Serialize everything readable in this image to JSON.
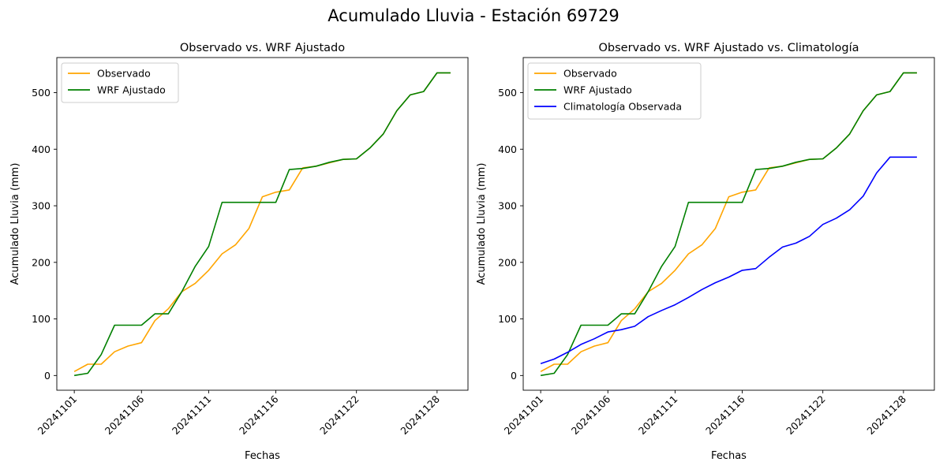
{
  "suptitle": "Acumulado Lluvia - Estación 69729",
  "colors": {
    "observado": "#ffa500",
    "wrf": "#008000",
    "clim": "#0000ff"
  },
  "chart_data": [
    {
      "type": "line",
      "title": "Observado vs. WRF Ajustado",
      "xlabel": "Fechas",
      "ylabel": "Acumulado Lluvia (mm)",
      "x": [
        "20241101",
        "20241102",
        "20241103",
        "20241104",
        "20241105",
        "20241106",
        "20241107",
        "20241108",
        "20241109",
        "20241110",
        "20241111",
        "20241112",
        "20241113",
        "20241114",
        "20241115",
        "20241116",
        "20241117",
        "20241118",
        "20241119",
        "20241120",
        "20241121",
        "20241122",
        "20241123",
        "20241124",
        "20241125",
        "20241126",
        "20241127",
        "20241128",
        "20241129"
      ],
      "xticks": [
        "20241101",
        "20241106",
        "20241111",
        "20241116",
        "20241122",
        "20241128"
      ],
      "ylim": [
        -26,
        562
      ],
      "yticks": [
        0,
        100,
        200,
        300,
        400,
        500
      ],
      "legend_position": "upper-left",
      "grid": false,
      "series": [
        {
          "name": "Observado",
          "color": "#ffa500",
          "values": [
            7,
            20,
            20,
            42,
            52,
            58,
            97,
            118,
            148,
            163,
            186,
            215,
            231,
            260,
            316,
            324,
            328,
            367,
            370,
            376,
            382,
            383,
            402,
            427,
            468,
            496,
            502,
            535,
            535
          ]
        },
        {
          "name": "WRF Ajustado",
          "color": "#008000",
          "values": [
            0,
            4,
            37,
            89,
            89,
            89,
            109,
            109,
            148,
            193,
            228,
            306,
            306,
            306,
            306,
            306,
            364,
            366,
            370,
            377,
            382,
            383,
            402,
            427,
            468,
            496,
            502,
            535,
            535
          ]
        }
      ]
    },
    {
      "type": "line",
      "title": "Observado vs. WRF Ajustado vs. Climatología",
      "xlabel": "Fechas",
      "ylabel": "Acumulado Lluvia (mm)",
      "x": [
        "20241101",
        "20241102",
        "20241103",
        "20241104",
        "20241105",
        "20241106",
        "20241107",
        "20241108",
        "20241109",
        "20241110",
        "20241111",
        "20241112",
        "20241113",
        "20241114",
        "20241115",
        "20241116",
        "20241117",
        "20241118",
        "20241119",
        "20241120",
        "20241121",
        "20241122",
        "20241123",
        "20241124",
        "20241125",
        "20241126",
        "20241127",
        "20241128",
        "20241129"
      ],
      "xticks": [
        "20241101",
        "20241106",
        "20241111",
        "20241116",
        "20241122",
        "20241128"
      ],
      "ylim": [
        -26,
        562
      ],
      "yticks": [
        0,
        100,
        200,
        300,
        400,
        500
      ],
      "legend_position": "upper-left",
      "grid": false,
      "series": [
        {
          "name": "Observado",
          "color": "#ffa500",
          "values": [
            7,
            20,
            20,
            42,
            52,
            58,
            97,
            118,
            148,
            163,
            186,
            215,
            231,
            260,
            316,
            324,
            328,
            367,
            370,
            376,
            382,
            383,
            402,
            427,
            468,
            496,
            502,
            535,
            535
          ]
        },
        {
          "name": "WRF Ajustado",
          "color": "#008000",
          "values": [
            0,
            4,
            37,
            89,
            89,
            89,
            109,
            109,
            148,
            193,
            228,
            306,
            306,
            306,
            306,
            306,
            364,
            366,
            370,
            377,
            382,
            383,
            402,
            427,
            468,
            496,
            502,
            535,
            535
          ]
        },
        {
          "name": "Climatología Observada",
          "color": "#0000ff",
          "values": [
            21,
            29,
            41,
            55,
            65,
            77,
            81,
            87,
            104,
            115,
            125,
            138,
            152,
            164,
            174,
            186,
            189,
            209,
            227,
            234,
            246,
            267,
            278,
            293,
            317,
            358,
            386,
            386,
            386
          ]
        }
      ]
    }
  ]
}
